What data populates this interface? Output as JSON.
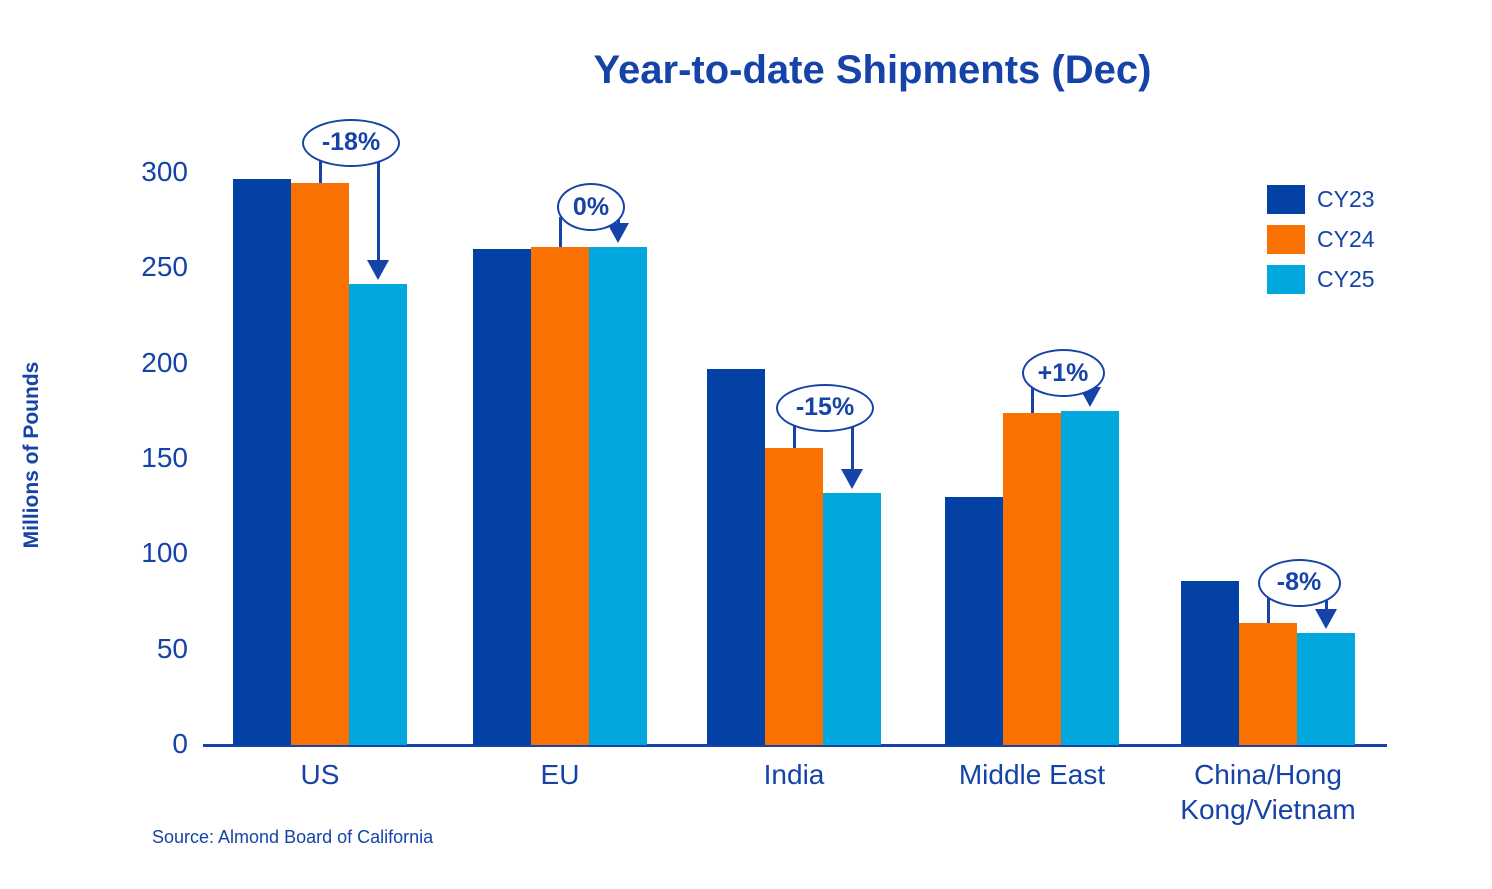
{
  "title": "Year-to-date Shipments (Dec)",
  "source": "Source: Almond Board of California",
  "colors": {
    "cy23_navy": "#0441A5",
    "cy24_orange": "#F97100",
    "cy25_cyan": "#00A8DE",
    "accent_text_blue": "#1543A8",
    "background": "#FFFFFF"
  },
  "chart_data": {
    "type": "bar",
    "title": "Year-to-date Shipments (Dec)",
    "xlabel": "",
    "ylabel": "Millions of Pounds",
    "ylim": [
      0,
      300
    ],
    "yticks": [
      0,
      50,
      100,
      150,
      200,
      250,
      300
    ],
    "grid": false,
    "legend_position": "upper right",
    "categories": [
      "US",
      "EU",
      "India",
      "Middle East",
      "China/Hong Kong/Vietnam"
    ],
    "series": [
      {
        "name": "CY23",
        "color": "#0441A5",
        "values": [
          297,
          260,
          197,
          130,
          86
        ]
      },
      {
        "name": "CY24",
        "color": "#F97100",
        "values": [
          295,
          261,
          156,
          174,
          64
        ]
      },
      {
        "name": "CY25",
        "color": "#00A8DE",
        "values": [
          242,
          261,
          132,
          175,
          59
        ]
      }
    ],
    "annotations": [
      {
        "category": "US",
        "label": "-18%"
      },
      {
        "category": "EU",
        "label": "0%"
      },
      {
        "category": "India",
        "label": "-15%"
      },
      {
        "category": "Middle East",
        "label": "+1%"
      },
      {
        "category": "China/Hong Kong/Vietnam",
        "label": "-8%"
      }
    ]
  },
  "legend": {
    "items": [
      {
        "label": "CY23"
      },
      {
        "label": "CY24"
      },
      {
        "label": "CY25"
      }
    ]
  }
}
